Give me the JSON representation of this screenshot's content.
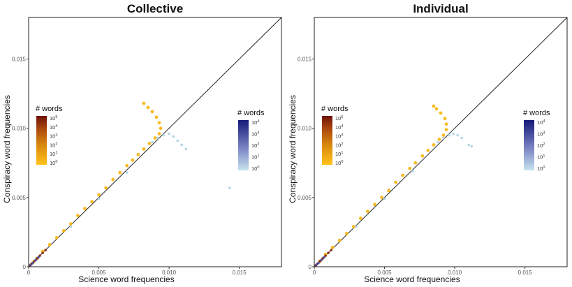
{
  "chart_data": [
    {
      "type": "scatter",
      "title": "Collective",
      "xlabel": "Science word frequencies",
      "ylabel": "Conspiracy word frequencies",
      "xlim": [
        0,
        0.018
      ],
      "ylim": [
        0,
        0.018
      ],
      "x_ticks": [
        "0",
        "0.005",
        "0.010",
        "0.015"
      ],
      "y_ticks": [
        "0",
        "0.005",
        "0.010",
        "0.015"
      ],
      "reference_line": "y = x",
      "grid": false,
      "legends": [
        {
          "title": "# words",
          "ticks": [
            "10^0",
            "10^1",
            "10^2",
            "10^3",
            "10^4",
            "10^5"
          ],
          "exponents": [
            "0",
            "1",
            "2",
            "3",
            "4",
            "5"
          ],
          "colors": [
            "#f7b718",
            "#7a1a0b"
          ],
          "placement": "left"
        },
        {
          "title": "# words",
          "ticks": [
            "10^0",
            "10^1",
            "10^2",
            "10^3",
            "10^4"
          ],
          "exponents": [
            "0",
            "1",
            "2",
            "3",
            "4"
          ],
          "colors": [
            "#b8dbe8",
            "#131a75"
          ],
          "placement": "right"
        }
      ],
      "series": [
        {
          "color": "#f7b718",
          "points": [
            [
              0.0082,
              0.0118
            ],
            [
              0.0085,
              0.0115
            ],
            [
              0.0088,
              0.0112
            ],
            [
              0.0091,
              0.0108
            ],
            [
              0.0093,
              0.0104
            ],
            [
              0.0094,
              0.01
            ],
            [
              0.0093,
              0.0096
            ],
            [
              0.009,
              0.0093
            ],
            [
              0.0086,
              0.0089
            ],
            [
              0.0082,
              0.0085
            ],
            [
              0.0078,
              0.0081
            ],
            [
              0.0074,
              0.0077
            ],
            [
              0.007,
              0.0073
            ],
            [
              0.0065,
              0.0068
            ],
            [
              0.006,
              0.0063
            ],
            [
              0.0055,
              0.0057
            ],
            [
              0.005,
              0.0052
            ],
            [
              0.0045,
              0.0047
            ],
            [
              0.004,
              0.0042
            ],
            [
              0.0035,
              0.0037
            ],
            [
              0.003,
              0.0031
            ],
            [
              0.0025,
              0.0026
            ],
            [
              0.002,
              0.0021
            ],
            [
              0.0015,
              0.0016
            ],
            [
              0.001,
              0.0011
            ],
            [
              0.0006,
              0.0006
            ],
            [
              0.0003,
              0.0003
            ]
          ]
        },
        {
          "color": "#a8cfe0",
          "points": [
            [
              0.0088,
              0.009
            ],
            [
              0.0092,
              0.0093
            ],
            [
              0.0096,
              0.0095
            ],
            [
              0.01,
              0.0096
            ],
            [
              0.0103,
              0.0094
            ],
            [
              0.0106,
              0.0091
            ],
            [
              0.0109,
              0.0088
            ],
            [
              0.0112,
              0.0085
            ],
            [
              0.0143,
              0.0057
            ],
            [
              0.007,
              0.0068
            ],
            [
              0.005,
              0.0049
            ],
            [
              0.003,
              0.0029
            ]
          ]
        },
        {
          "color": "#8a2a12",
          "points": [
            [
              0.0001,
              0.0001
            ],
            [
              0.0002,
              0.0002
            ],
            [
              0.0004,
              0.0004
            ],
            [
              0.0006,
              0.0006
            ],
            [
              0.0008,
              0.0008
            ],
            [
              0.001,
              0.001
            ],
            [
              0.0012,
              0.0012
            ]
          ]
        },
        {
          "color": "#4a4f9a",
          "points": [
            [
              0.00015,
              0.00014
            ],
            [
              0.0003,
              0.00028
            ],
            [
              0.0005,
              0.00048
            ],
            [
              0.0007,
              0.00068
            ]
          ]
        }
      ]
    },
    {
      "type": "scatter",
      "title": "Individual",
      "xlabel": "Science word frequencies",
      "ylabel": "Conspiracy word frequencies",
      "xlim": [
        0,
        0.018
      ],
      "ylim": [
        0,
        0.018
      ],
      "x_ticks": [
        "0",
        "0.005",
        "0.010",
        "0.015"
      ],
      "y_ticks": [
        "0",
        "0.005",
        "0.010",
        "0.015"
      ],
      "reference_line": "y = x",
      "grid": false,
      "legends": [
        {
          "title": "# words",
          "ticks": [
            "10^0",
            "10^1",
            "10^2",
            "10^3",
            "10^4",
            "10^5"
          ],
          "exponents": [
            "0",
            "1",
            "2",
            "3",
            "4",
            "5"
          ],
          "colors": [
            "#f7b718",
            "#7a1a0b"
          ],
          "placement": "left"
        },
        {
          "title": "# words",
          "ticks": [
            "10^0",
            "10^1",
            "10^2",
            "10^3",
            "10^4"
          ],
          "exponents": [
            "0",
            "1",
            "2",
            "3",
            "4"
          ],
          "colors": [
            "#b8dbe8",
            "#131a75"
          ],
          "placement": "right"
        }
      ],
      "series": [
        {
          "color": "#f7b718",
          "points": [
            [
              0.0085,
              0.0116
            ],
            [
              0.0087,
              0.0114
            ],
            [
              0.009,
              0.0111
            ],
            [
              0.0093,
              0.0107
            ],
            [
              0.0094,
              0.0103
            ],
            [
              0.0094,
              0.0099
            ],
            [
              0.0092,
              0.0095
            ],
            [
              0.0089,
              0.0092
            ],
            [
              0.0085,
              0.0088
            ],
            [
              0.0081,
              0.0084
            ],
            [
              0.0077,
              0.008
            ],
            [
              0.0072,
              0.0075
            ],
            [
              0.0068,
              0.0071
            ],
            [
              0.0063,
              0.0066
            ],
            [
              0.0058,
              0.0061
            ],
            [
              0.0053,
              0.0055
            ],
            [
              0.0048,
              0.005
            ],
            [
              0.0043,
              0.0045
            ],
            [
              0.0038,
              0.004
            ],
            [
              0.0033,
              0.0035
            ],
            [
              0.0028,
              0.0029
            ],
            [
              0.0023,
              0.0024
            ],
            [
              0.0018,
              0.0019
            ],
            [
              0.0013,
              0.0014
            ],
            [
              0.0008,
              0.0009
            ],
            [
              0.0004,
              0.0004
            ]
          ]
        },
        {
          "color": "#a8cfe0",
          "points": [
            [
              0.0088,
              0.009
            ],
            [
              0.0092,
              0.0093
            ],
            [
              0.0096,
              0.0095
            ],
            [
              0.0099,
              0.0096
            ],
            [
              0.0102,
              0.0095
            ],
            [
              0.0105,
              0.0093
            ],
            [
              0.011,
              0.0088
            ],
            [
              0.0112,
              0.0087
            ],
            [
              0.007,
              0.0069
            ],
            [
              0.005,
              0.0049
            ],
            [
              0.003,
              0.0029
            ]
          ]
        },
        {
          "color": "#8a2a12",
          "points": [
            [
              0.0001,
              0.0001
            ],
            [
              0.0002,
              0.0002
            ],
            [
              0.0004,
              0.0004
            ],
            [
              0.0006,
              0.0006
            ],
            [
              0.0008,
              0.0008
            ],
            [
              0.001,
              0.001
            ],
            [
              0.0012,
              0.0012
            ]
          ]
        },
        {
          "color": "#4a4f9a",
          "points": [
            [
              0.00015,
              0.00014
            ],
            [
              0.0003,
              0.00028
            ],
            [
              0.0005,
              0.00048
            ],
            [
              0.0007,
              0.00068
            ]
          ]
        }
      ]
    }
  ]
}
